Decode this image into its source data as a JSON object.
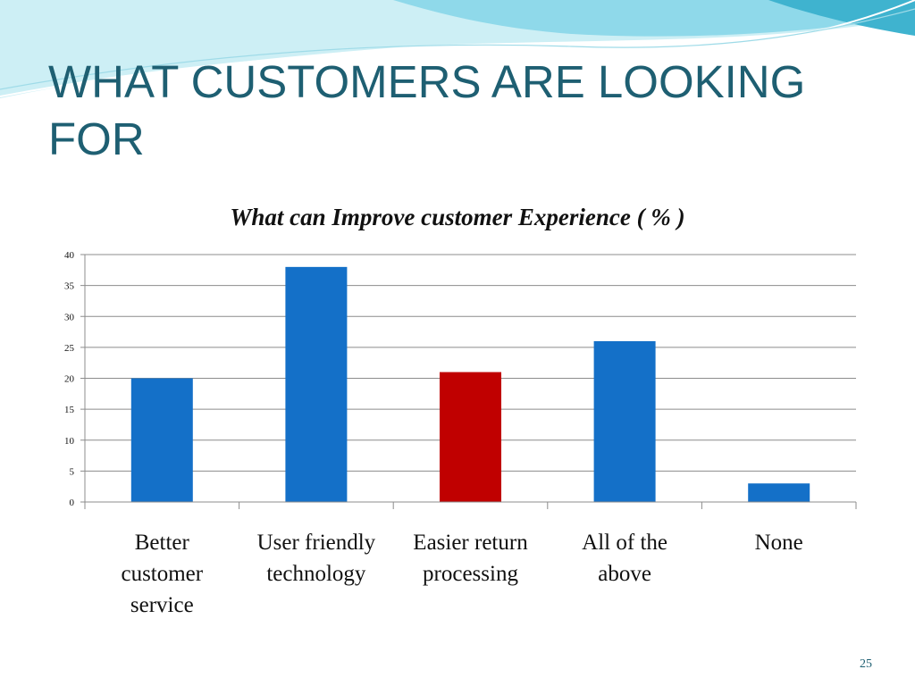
{
  "slide": {
    "title": "WHAT CUSTOMERS ARE LOOKING FOR",
    "page_number": "25"
  },
  "colors": {
    "title": "#1e5f72",
    "bar_default": "#1470c8",
    "bar_highlight": "#c00000",
    "gridline": "#8c8c8c",
    "wave_light": "#b6e8f1",
    "wave_mid": "#7fd3e6",
    "wave_dark": "#3fb3cf"
  },
  "chart_data": {
    "type": "bar",
    "title": "What can Improve customer  Experience ( % )",
    "categories": [
      [
        "Better",
        "customer",
        "service"
      ],
      [
        "User friendly",
        "technology"
      ],
      [
        "Easier return",
        "processing"
      ],
      [
        "All of the",
        "above"
      ],
      [
        "None"
      ]
    ],
    "values": [
      20,
      38,
      21,
      26,
      3
    ],
    "highlight_index": 2,
    "ylim": [
      0,
      40
    ],
    "yticks": [
      0,
      5,
      10,
      15,
      20,
      25,
      30,
      35,
      40
    ],
    "xlabel": "",
    "ylabel": "",
    "grid": true,
    "legend": "none"
  }
}
